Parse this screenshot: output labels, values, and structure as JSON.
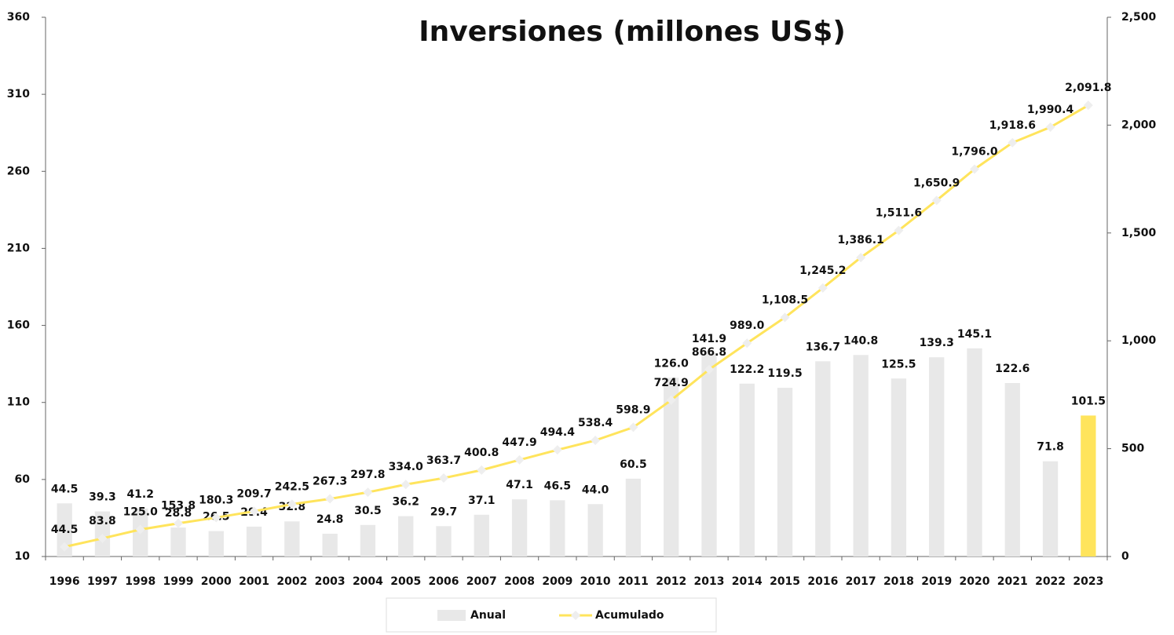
{
  "chart_data": {
    "type": "bar",
    "title": "Inversiones (millones US$)",
    "categories": [
      "1996",
      "1997",
      "1998",
      "1999",
      "2000",
      "2001",
      "2002",
      "2003",
      "2004",
      "2005",
      "2006",
      "2007",
      "2008",
      "2009",
      "2010",
      "2011",
      "2012",
      "2013",
      "2014",
      "2015",
      "2016",
      "2017",
      "2018",
      "2019",
      "2020",
      "2021",
      "2022",
      "2023"
    ],
    "series": [
      {
        "name": "Anual",
        "type": "bar",
        "axis": "y",
        "color": "#e8e8e8",
        "colors": [
          "#e8e8e8",
          "#e8e8e8",
          "#e8e8e8",
          "#e8e8e8",
          "#e8e8e8",
          "#e8e8e8",
          "#e8e8e8",
          "#e8e8e8",
          "#e8e8e8",
          "#e8e8e8",
          "#e8e8e8",
          "#e8e8e8",
          "#e8e8e8",
          "#e8e8e8",
          "#e8e8e8",
          "#e8e8e8",
          "#e8e8e8",
          "#e8e8e8",
          "#e8e8e8",
          "#e8e8e8",
          "#e8e8e8",
          "#e8e8e8",
          "#e8e8e8",
          "#e8e8e8",
          "#e8e8e8",
          "#e8e8e8",
          "#e8e8e8",
          "#ffe45c"
        ],
        "values": [
          44.5,
          39.3,
          41.2,
          28.8,
          26.5,
          29.4,
          32.8,
          24.8,
          30.5,
          36.2,
          29.7,
          37.1,
          47.1,
          46.5,
          44.0,
          60.5,
          126.0,
          141.9,
          122.2,
          119.5,
          136.7,
          140.8,
          125.5,
          139.3,
          145.1,
          122.6,
          71.8,
          101.5
        ],
        "value_labels": [
          "44.5",
          "39.3",
          "41.2",
          "28.8",
          "26.5",
          "29.4",
          "32.8",
          "24.8",
          "30.5",
          "36.2",
          "29.7",
          "37.1",
          "47.1",
          "46.5",
          "44.0",
          "60.5",
          "126.0",
          "141.9",
          "122.2",
          "119.5",
          "136.7",
          "140.8",
          "125.5",
          "139.3",
          "145.1",
          "122.6",
          "71.8",
          "101.5"
        ]
      },
      {
        "name": "Acumulado",
        "type": "line",
        "axis": "y2",
        "color": "#ffe45c",
        "marker_color": "#eeeeee",
        "values": [
          44.5,
          83.8,
          125.0,
          153.8,
          180.3,
          209.7,
          242.5,
          267.3,
          297.8,
          334.0,
          363.7,
          400.8,
          447.9,
          494.4,
          538.4,
          598.9,
          724.9,
          866.8,
          989.0,
          1108.5,
          1245.2,
          1386.1,
          1511.6,
          1650.9,
          1796.0,
          1918.6,
          1990.4,
          2091.8
        ],
        "value_labels": [
          "44.5",
          "83.8",
          "125.0",
          "153.8",
          "180.3",
          "209.7",
          "242.5",
          "267.3",
          "297.8",
          "334.0",
          "363.7",
          "400.8",
          "447.9",
          "494.4",
          "538.4",
          "598.9",
          "724.9",
          "866.8",
          "989.0",
          "1,108.5",
          "1,245.2",
          "1,386.1",
          "1,511.6",
          "1,650.9",
          "1,796.0",
          "1,918.6",
          "1,990.4",
          "2,091.8"
        ]
      }
    ],
    "ylim": [
      10,
      360
    ],
    "yticks": [
      10,
      60,
      110,
      160,
      210,
      260,
      310,
      360
    ],
    "y2lim": [
      0,
      2500
    ],
    "y2ticks": [
      0,
      500,
      {
        "value": 1000,
        "label": "1,000"
      },
      {
        "value": 1500,
        "label": "1,500"
      },
      {
        "value": 2000,
        "label": "2,000"
      },
      {
        "value": 2500,
        "label": "2,500"
      }
    ],
    "grid": false,
    "legend": "bottom"
  }
}
